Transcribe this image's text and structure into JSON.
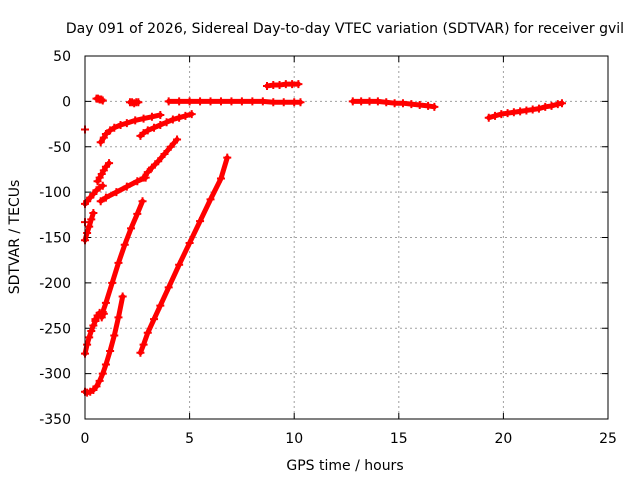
{
  "chart_data": {
    "type": "scatter",
    "title": "Day 091 of 2026, Sidereal Day-to-day VTEC variation (SDTVAR) for receiver gvil",
    "xlabel": "GPS time / hours",
    "ylabel": "SDTVAR / TECUs",
    "xlim": [
      0,
      25
    ],
    "ylim": [
      -350,
      50
    ],
    "xticks": [
      "0",
      "5",
      "10",
      "15",
      "20",
      "25"
    ],
    "yticks": [
      "50",
      "0",
      "-50",
      "-100",
      "-150",
      "-200",
      "-250",
      "-300",
      "-350"
    ],
    "grid": true,
    "legend": "none",
    "colors": {
      "series": "#ff0000",
      "grid": "#a0a0a0",
      "frame": "#000000"
    },
    "series": [
      {
        "x": [
          0.55,
          0.62,
          0.7,
          0.78,
          0.85
        ],
        "y": [
          3,
          3,
          2,
          2,
          1
        ]
      },
      {
        "x": [
          2.15,
          2.25,
          2.35,
          2.45,
          2.55
        ],
        "y": [
          -1,
          -1,
          -2,
          -1,
          -1
        ]
      },
      {
        "x": [
          0.75,
          0.9,
          1.0,
          1.2,
          1.4,
          1.7,
          2.0,
          2.4,
          2.8,
          3.2,
          3.6
        ],
        "y": [
          -45,
          -40,
          -36,
          -32,
          -29,
          -26,
          -24,
          -21,
          -19,
          -17,
          -15
        ]
      },
      {
        "x": [
          2.65,
          2.8,
          3.0,
          3.3,
          3.6,
          3.9,
          4.2,
          4.5,
          4.8,
          5.1
        ],
        "y": [
          -38,
          -35,
          -32,
          -29,
          -26,
          -23,
          -20,
          -18,
          -16,
          -14
        ]
      },
      {
        "x": [
          0.0,
          0.1,
          0.25,
          0.4,
          0.55,
          0.7,
          0.85
        ],
        "y": [
          -113,
          -110,
          -106,
          -102,
          -98,
          -95,
          -93
        ]
      },
      {
        "x": [
          0.6,
          0.7,
          0.8,
          0.9,
          1.0,
          1.15
        ],
        "y": [
          -88,
          -84,
          -80,
          -76,
          -72,
          -68
        ]
      },
      {
        "x": [
          0.75,
          1.0,
          1.5,
          2.0,
          2.5,
          2.9
        ],
        "y": [
          -110,
          -106,
          -100,
          -94,
          -88,
          -84
        ]
      },
      {
        "x": [
          2.8,
          3.0,
          3.2,
          3.5,
          3.8,
          4.1,
          4.4
        ],
        "y": [
          -84,
          -78,
          -73,
          -66,
          -58,
          -50,
          -42
        ]
      },
      {
        "x": [
          0.0,
          0.1,
          0.2,
          0.3,
          0.4
        ],
        "y": [
          -153,
          -145,
          -138,
          -130,
          -123
        ]
      },
      {
        "x": [
          0.0,
          0.1,
          0.2,
          0.3,
          0.4,
          0.5
        ],
        "y": [
          -278,
          -268,
          -260,
          -253,
          -247,
          -242
        ]
      },
      {
        "x": [
          0.5,
          0.6,
          0.7,
          0.8,
          0.9
        ],
        "y": [
          -240,
          -236,
          -233,
          -238,
          -234
        ]
      },
      {
        "x": [
          0.85,
          1.0,
          1.3,
          1.6,
          1.9,
          2.2,
          2.5,
          2.75
        ],
        "y": [
          -232,
          -222,
          -200,
          -178,
          -158,
          -140,
          -124,
          -110
        ]
      },
      {
        "x": [
          0.0,
          0.1,
          0.25,
          0.4,
          0.55,
          0.7,
          0.85,
          1.0,
          1.2,
          1.4,
          1.6,
          1.8
        ],
        "y": [
          -320,
          -321,
          -320,
          -318,
          -314,
          -308,
          -300,
          -290,
          -275,
          -258,
          -238,
          -215
        ]
      },
      {
        "x": [
          2.65,
          2.8,
          3.0,
          3.3,
          3.6,
          4.0,
          4.5,
          5.0,
          5.5,
          6.0,
          6.5,
          6.8
        ],
        "y": [
          -277,
          -268,
          -255,
          -240,
          -225,
          -205,
          -180,
          -156,
          -132,
          -108,
          -85,
          -62
        ]
      },
      {
        "x": [
          4.0,
          4.5,
          5.0,
          5.5,
          6.0,
          6.5,
          7.0,
          7.5,
          8.0,
          8.5,
          9.0,
          9.5,
          10.0,
          10.3
        ],
        "y": [
          0,
          0,
          0,
          0,
          0,
          0,
          0,
          0,
          0,
          0,
          -1,
          -1,
          -1,
          -1
        ]
      },
      {
        "x": [
          8.7,
          9.0,
          9.3,
          9.6,
          9.9,
          10.2
        ],
        "y": [
          17,
          18,
          18,
          19,
          19,
          19
        ]
      },
      {
        "x": [
          12.8,
          13.2,
          13.6,
          14.0,
          14.4,
          14.8,
          15.2,
          15.6,
          16.0,
          16.4,
          16.7
        ],
        "y": [
          0,
          0,
          0,
          0,
          -1,
          -2,
          -2,
          -3,
          -4,
          -5,
          -6
        ]
      },
      {
        "x": [
          19.3,
          19.6,
          19.9,
          20.2,
          20.5,
          20.8,
          21.1,
          21.4,
          21.7,
          22.0,
          22.3,
          22.6,
          22.8
        ],
        "y": [
          -18,
          -16,
          -14,
          -13,
          -12,
          -11,
          -10,
          -9,
          -8,
          -6,
          -5,
          -3,
          -2
        ]
      },
      {
        "x": [
          0.0
        ],
        "y": [
          -31
        ]
      },
      {
        "x": [
          0.0
        ],
        "y": [
          -133
        ]
      }
    ]
  }
}
